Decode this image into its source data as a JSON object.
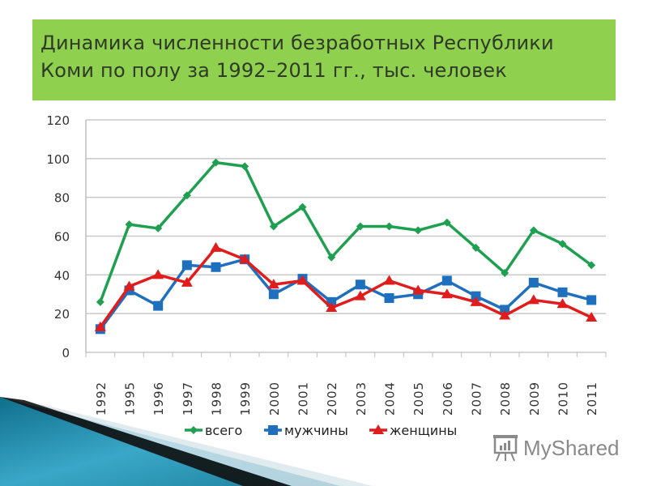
{
  "title": {
    "line1": "Динамика численности безработных Республики",
    "line2": "Коми по полу за 1992–2011 гг., тыс. человек"
  },
  "watermark": {
    "text": "MyShared",
    "icon": "presentation-board-icon"
  },
  "colors": {
    "title_bg": "#8fd14f",
    "total": "#1fa050",
    "men": "#1f6fbf",
    "women": "#e01c1c",
    "grid": "#c8c8c8",
    "corner_teal": "#1b7f9a"
  },
  "chart_data": {
    "type": "line",
    "title": "Динамика численности безработных Республики Коми по полу за 1992–2011 гг., тыс. человек",
    "xlabel": "",
    "ylabel": "",
    "ylim": [
      0,
      120
    ],
    "yticks": [
      0,
      20,
      40,
      60,
      80,
      100,
      120
    ],
    "grid": true,
    "legend_position": "bottom",
    "categories": [
      "1992",
      "1995",
      "1996",
      "1997",
      "1998",
      "1999",
      "2000",
      "2001",
      "2002",
      "2003",
      "2004",
      "2005",
      "2006",
      "2007",
      "2008",
      "2009",
      "2010",
      "2011"
    ],
    "series": [
      {
        "name": "всего",
        "marker": "diamond",
        "color": "#1fa050",
        "values": [
          26,
          66,
          64,
          81,
          98,
          96,
          65,
          75,
          49,
          65,
          65,
          63,
          67,
          54,
          41,
          63,
          56,
          45
        ]
      },
      {
        "name": "мужчины",
        "marker": "square",
        "color": "#1f6fbf",
        "values": [
          12,
          32,
          24,
          45,
          44,
          48,
          30,
          38,
          26,
          35,
          28,
          30,
          37,
          29,
          22,
          36,
          31,
          27
        ]
      },
      {
        "name": "женщины",
        "marker": "triangle",
        "color": "#e01c1c",
        "values": [
          13,
          34,
          40,
          36,
          54,
          48,
          35,
          37,
          23,
          29,
          37,
          32,
          30,
          26,
          19,
          27,
          25,
          18
        ]
      }
    ]
  }
}
